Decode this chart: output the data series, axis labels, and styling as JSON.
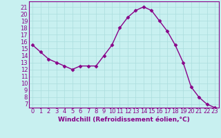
{
  "x": [
    0,
    1,
    2,
    3,
    4,
    5,
    6,
    7,
    8,
    9,
    10,
    11,
    12,
    13,
    14,
    15,
    16,
    17,
    18,
    19,
    20,
    21,
    22,
    23
  ],
  "y": [
    15.5,
    14.5,
    13.5,
    13,
    12.5,
    12,
    12.5,
    12.5,
    12.5,
    14,
    15.5,
    18,
    19.5,
    20.5,
    21,
    20.5,
    19,
    17.5,
    15.5,
    13,
    9.5,
    8,
    7,
    6.5
  ],
  "line_color": "#880088",
  "marker": "D",
  "marker_size": 2.5,
  "background_color": "#c8f0f0",
  "grid_color": "#aadddd",
  "xlabel": "Windchill (Refroidissement éolien,°C)",
  "xlabel_fontsize": 6.5,
  "ytick_min": 7,
  "ytick_max": 21,
  "ylim": [
    6.5,
    21.8
  ],
  "xlim": [
    -0.5,
    23.5
  ],
  "tick_fontsize": 6,
  "line_width": 1.0
}
